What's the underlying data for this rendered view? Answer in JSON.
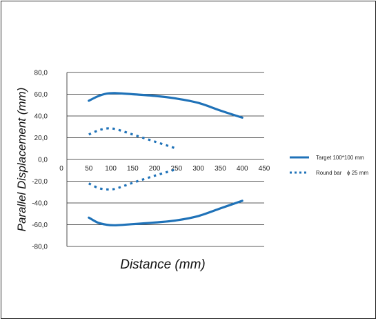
{
  "chart_data": {
    "type": "line",
    "xlabel": "Distance (mm)",
    "ylabel": "Parallel Displacement (mm)",
    "xlim": [
      0,
      450
    ],
    "ylim": [
      -80,
      80
    ],
    "x_ticks": [
      "0",
      "50",
      "100",
      "150",
      "200",
      "250",
      "300",
      "350",
      "400",
      "450"
    ],
    "y_ticks": [
      "80,0",
      "60,0",
      "40,0",
      "20,0",
      "0,0",
      "-20,0",
      "-40,0",
      "-60,0",
      "-80,0"
    ],
    "grid": "horizontal",
    "legend_position": "right",
    "color": "#1f72b8",
    "legend": [
      {
        "label": "Target 100*100 mm",
        "style": "solid"
      },
      {
        "label": "Round bar",
        "suffix": "ϕ 25 mm",
        "style": "dotted"
      }
    ],
    "series": [
      {
        "legend_index": 0,
        "style": "solid",
        "x": [
          50,
          70,
          90,
          110,
          150,
          200,
          250,
          300,
          350,
          400
        ],
        "y": [
          54,
          58,
          60.5,
          61,
          60,
          58.5,
          56,
          52,
          45,
          38.5
        ]
      },
      {
        "legend_index": 0,
        "style": "solid",
        "x": [
          50,
          70,
          90,
          110,
          150,
          200,
          250,
          300,
          350,
          400
        ],
        "y": [
          -53.5,
          -58,
          -60,
          -60.5,
          -59.5,
          -58,
          -56,
          -52,
          -45,
          -38
        ]
      },
      {
        "legend_index": 1,
        "style": "dotted",
        "x": [
          50,
          70,
          90,
          110,
          150,
          200,
          250
        ],
        "y": [
          23,
          26.5,
          28.5,
          28,
          23,
          16.5,
          10
        ]
      },
      {
        "legend_index": 1,
        "style": "dotted",
        "x": [
          50,
          70,
          90,
          110,
          150,
          200,
          250
        ],
        "y": [
          -22,
          -26,
          -27.5,
          -27,
          -21.5,
          -15,
          -9
        ]
      }
    ]
  }
}
